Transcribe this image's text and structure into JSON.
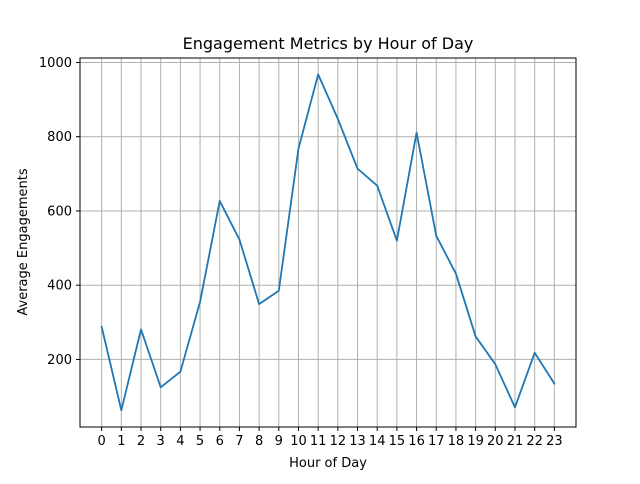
{
  "chart_data": {
    "type": "line",
    "title": "Engagement Metrics by Hour of Day",
    "xlabel": "Hour of Day",
    "ylabel": "Average Engagements",
    "x": [
      0,
      1,
      2,
      3,
      4,
      5,
      6,
      7,
      8,
      9,
      10,
      11,
      12,
      13,
      14,
      15,
      16,
      17,
      18,
      19,
      20,
      21,
      22,
      23
    ],
    "xticks": [
      "0",
      "1",
      "2",
      "3",
      "4",
      "5",
      "6",
      "7",
      "8",
      "9",
      "10",
      "11",
      "12",
      "13",
      "14",
      "15",
      "16",
      "17",
      "18",
      "19",
      "20",
      "21",
      "22",
      "23"
    ],
    "yticks": [
      200,
      400,
      600,
      800,
      1000
    ],
    "xlim": [
      -1.1,
      24.1
    ],
    "ylim": [
      18,
      1012
    ],
    "grid": true,
    "series": [
      {
        "color": "#1f77b4",
        "values": [
          288,
          63,
          281,
          125,
          167,
          355,
          627,
          523,
          349,
          385,
          768,
          968,
          848,
          714,
          668,
          520,
          811,
          533,
          431,
          262,
          187,
          71,
          218,
          135
        ]
      }
    ]
  }
}
